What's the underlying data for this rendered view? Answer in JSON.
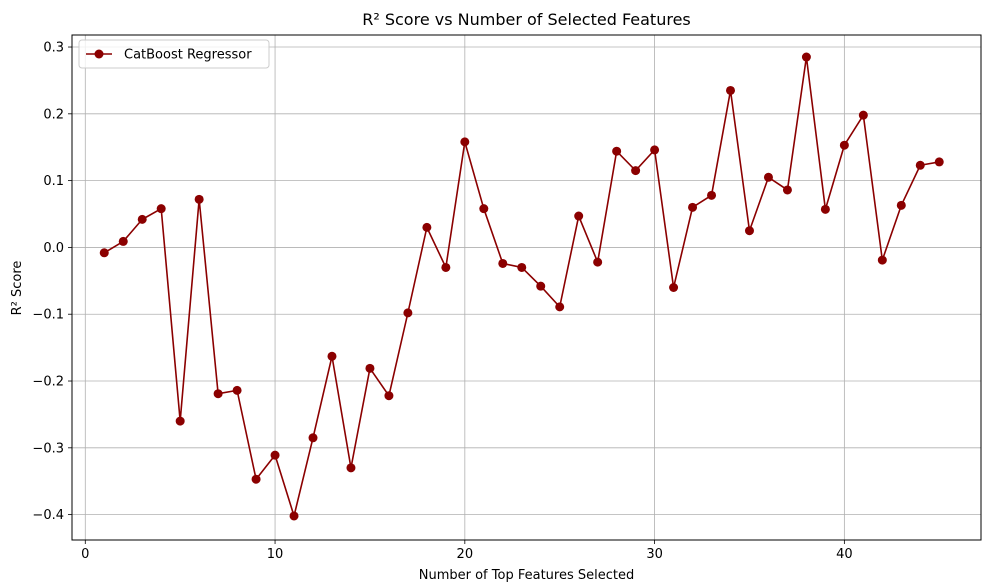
{
  "chart_data": {
    "type": "line",
    "title": "R² Score vs Number of Selected Features",
    "xlabel": "Number of Top Features Selected",
    "ylabel": "R² Score",
    "xlim": [
      -0.7,
      47.2
    ],
    "ylim": [
      -0.438,
      0.318
    ],
    "xticks": [
      0,
      10,
      20,
      30,
      40
    ],
    "yticks": [
      -0.4,
      -0.3,
      -0.2,
      -0.1,
      0.0,
      0.1,
      0.2,
      0.3
    ],
    "ytick_labels": [
      "−0.4",
      "−0.3",
      "−0.2",
      "−0.1",
      "0.0",
      "0.1",
      "0.2",
      "0.3"
    ],
    "grid": true,
    "legend_position": "top-left",
    "series": [
      {
        "name": "CatBoost Regressor",
        "color": "#8b0000",
        "marker": "circle",
        "x": [
          1,
          2,
          3,
          4,
          5,
          6,
          7,
          8,
          9,
          10,
          11,
          12,
          13,
          14,
          15,
          16,
          17,
          18,
          19,
          20,
          21,
          22,
          23,
          24,
          25,
          26,
          27,
          28,
          29,
          30,
          31,
          32,
          33,
          34,
          35,
          36,
          37,
          38,
          39,
          40,
          41,
          42,
          43,
          44,
          45
        ],
        "y": [
          -0.008,
          0.009,
          0.042,
          0.058,
          -0.26,
          0.072,
          -0.219,
          -0.214,
          -0.347,
          -0.311,
          -0.402,
          -0.285,
          -0.163,
          -0.33,
          -0.181,
          -0.222,
          -0.098,
          0.03,
          -0.03,
          0.158,
          0.058,
          -0.024,
          -0.03,
          -0.058,
          -0.089,
          0.047,
          -0.022,
          0.144,
          0.115,
          0.146,
          -0.06,
          0.06,
          0.078,
          0.235,
          0.025,
          0.105,
          0.086,
          0.285,
          0.057,
          0.153,
          0.198,
          -0.019,
          0.063,
          0.123,
          0.128
        ]
      }
    ]
  }
}
